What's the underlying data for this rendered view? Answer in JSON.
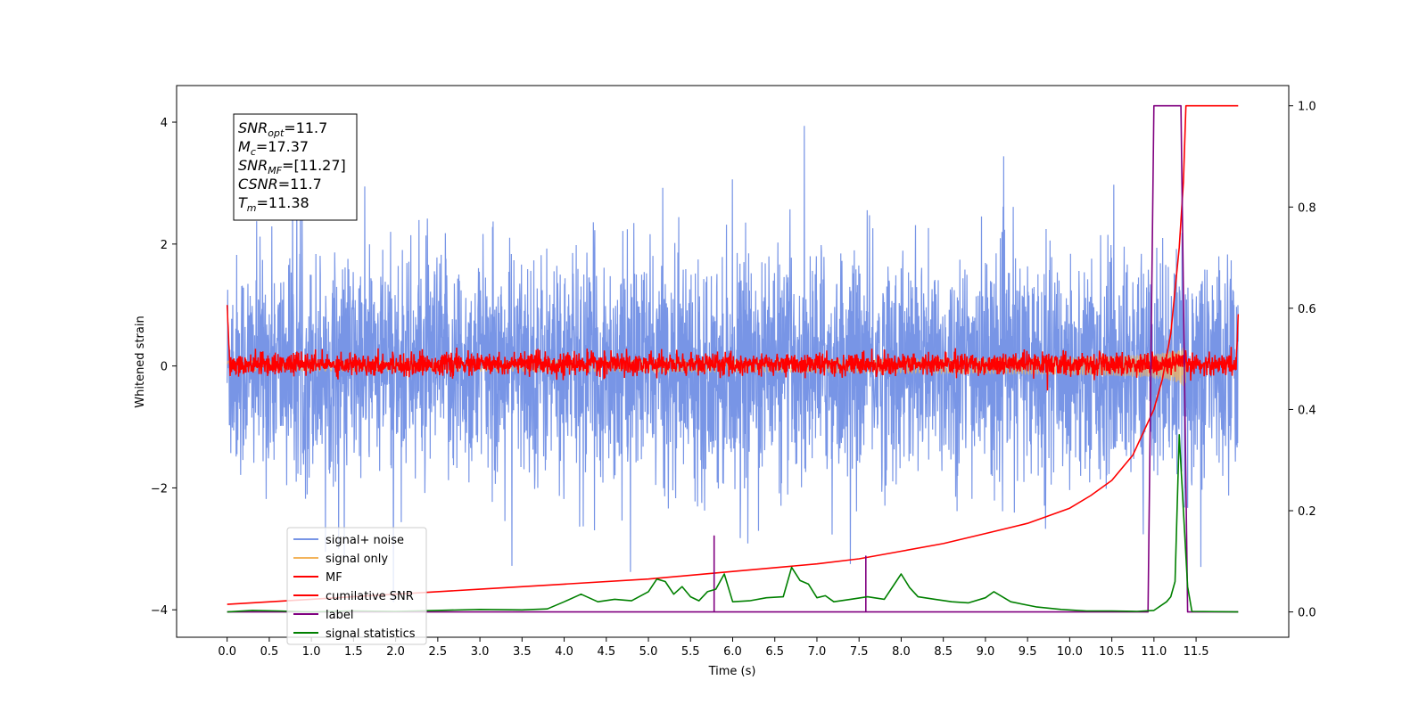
{
  "chart_data": {
    "type": "line",
    "title": "",
    "xlabel": "Time (s)",
    "ylabel": "Whitened strain",
    "xlim": [
      -0.6,
      12.6
    ],
    "ylim": [
      -4.45,
      4.6
    ],
    "y2lim": [
      -0.05,
      1.04
    ],
    "x_ticks": [
      "0.0",
      "0.5",
      "1.0",
      "1.5",
      "2.0",
      "2.5",
      "3.0",
      "3.5",
      "4.0",
      "4.5",
      "5.0",
      "5.5",
      "6.0",
      "6.5",
      "7.0",
      "7.5",
      "8.0",
      "8.5",
      "9.0",
      "9.5",
      "10.0",
      "10.5",
      "11.0",
      "11.5"
    ],
    "y_ticks": [
      "4",
      "2",
      "0",
      "−2",
      "−4"
    ],
    "y2_ticks": [
      "1.0",
      "0.8",
      "0.6",
      "0.4",
      "0.2",
      "0.0"
    ],
    "grid": false,
    "legend_location": "lower-left",
    "annotation": {
      "lines": [
        {
          "main": "SNR",
          "sub": "opt",
          "rest": "=11.7"
        },
        {
          "main": "M",
          "sub": "c",
          "rest": "=17.37"
        },
        {
          "main": "SNR",
          "sub": "MF",
          "rest": "=[11.27]"
        },
        {
          "main": "CSNR",
          "sub": "",
          "rest": "=11.7"
        },
        {
          "main": "T",
          "sub": "m",
          "rest": "=11.38"
        }
      ]
    },
    "series": [
      {
        "name": "signal+ noise",
        "color": "#7895e6",
        "axis": "left",
        "kind": "noise",
        "x_range": [
          0,
          12
        ],
        "envelope": 1.45,
        "spike_max": 4.15,
        "spike_min": -3.9
      },
      {
        "name": "signal only",
        "color": "#f3b45c",
        "axis": "left",
        "kind": "chirp",
        "x_range": [
          0,
          11.38
        ],
        "peak_amplitude": 0.85,
        "merger_time": 11.38
      },
      {
        "name": "MF",
        "color": "#ff0000",
        "axis": "left",
        "kind": "mf",
        "x_range": [
          0,
          12
        ],
        "envelope": 0.15,
        "start_value": 1.0,
        "end_value": 0.85
      },
      {
        "name": "cumilative SNR",
        "color": "#ff0000",
        "axis": "right",
        "x": [
          0.0,
          1.0,
          2.0,
          3.0,
          4.0,
          5.0,
          6.0,
          7.0,
          7.5,
          8.0,
          8.5,
          9.0,
          9.5,
          10.0,
          10.25,
          10.5,
          10.75,
          11.0,
          11.1,
          11.2,
          11.3,
          11.35,
          11.38,
          12.0
        ],
        "values": [
          0.015,
          0.025,
          0.035,
          0.045,
          0.055,
          0.065,
          0.08,
          0.095,
          0.105,
          0.12,
          0.135,
          0.155,
          0.175,
          0.205,
          0.23,
          0.26,
          0.31,
          0.4,
          0.46,
          0.55,
          0.72,
          0.85,
          1.0,
          1.0
        ]
      },
      {
        "name": "label",
        "color": "#800080",
        "axis": "right",
        "x": [
          0.0,
          5.78,
          5.78,
          5.78,
          7.58,
          7.58,
          7.58,
          10.93,
          11.0,
          11.32,
          11.4,
          12.0
        ],
        "values": [
          0.0,
          0.0,
          0.15,
          0.0,
          0.0,
          0.11,
          0.0,
          0.0,
          1.0,
          1.0,
          0.0,
          0.0
        ]
      },
      {
        "name": "signal statistics",
        "color": "#008000",
        "axis": "right",
        "x": [
          0.0,
          0.3,
          0.6,
          1.0,
          1.5,
          2.0,
          2.5,
          3.0,
          3.5,
          3.8,
          4.0,
          4.2,
          4.4,
          4.6,
          4.8,
          5.0,
          5.1,
          5.2,
          5.3,
          5.4,
          5.5,
          5.6,
          5.7,
          5.8,
          5.9,
          6.0,
          6.2,
          6.4,
          6.6,
          6.7,
          6.8,
          6.9,
          7.0,
          7.1,
          7.2,
          7.4,
          7.6,
          7.8,
          8.0,
          8.1,
          8.2,
          8.4,
          8.6,
          8.8,
          9.0,
          9.1,
          9.3,
          9.6,
          9.9,
          10.2,
          10.5,
          10.8,
          11.0,
          11.15,
          11.2,
          11.25,
          11.3,
          11.35,
          11.4,
          11.45,
          12.0
        ],
        "values": [
          0.0,
          0.003,
          0.002,
          0.0,
          0.002,
          0.001,
          0.003,
          0.005,
          0.004,
          0.006,
          0.02,
          0.035,
          0.02,
          0.025,
          0.022,
          0.04,
          0.065,
          0.06,
          0.035,
          0.05,
          0.03,
          0.022,
          0.04,
          0.045,
          0.075,
          0.02,
          0.022,
          0.028,
          0.03,
          0.088,
          0.062,
          0.055,
          0.028,
          0.032,
          0.02,
          0.025,
          0.03,
          0.025,
          0.075,
          0.048,
          0.03,
          0.025,
          0.02,
          0.018,
          0.028,
          0.04,
          0.02,
          0.01,
          0.005,
          0.002,
          0.002,
          0.001,
          0.003,
          0.02,
          0.03,
          0.06,
          0.35,
          0.2,
          0.05,
          0.001,
          0.0
        ]
      }
    ]
  }
}
